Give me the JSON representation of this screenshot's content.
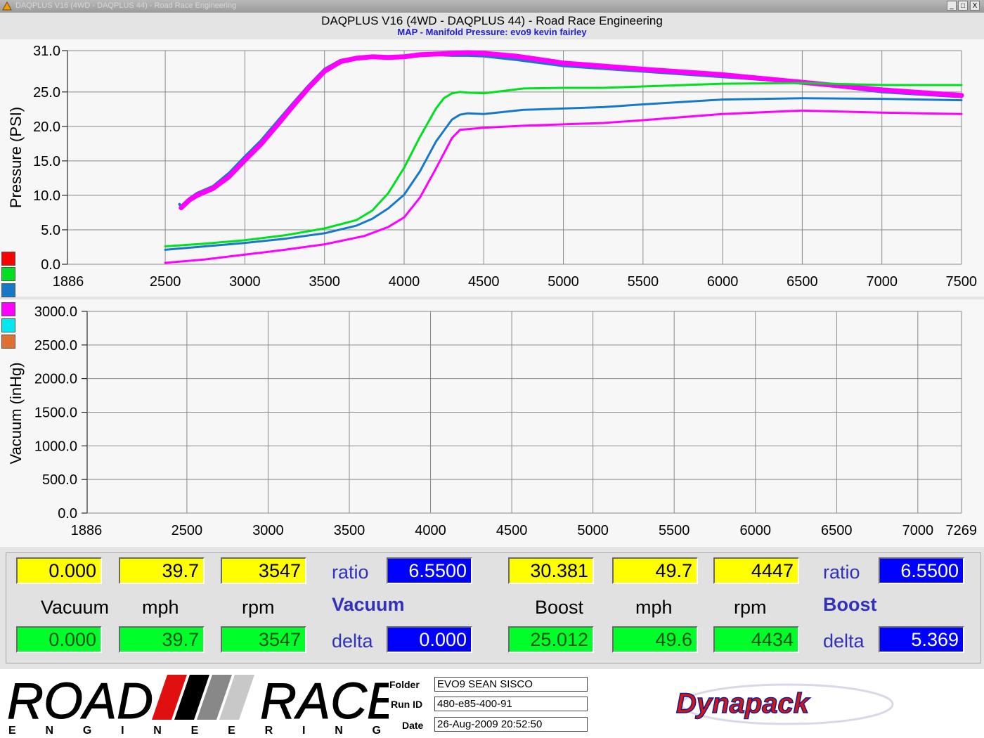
{
  "window": {
    "titlebar_text": "DAQPLUS V16 (4WD - DAQPLUS 44) - Road Race Engineering",
    "app_title": "DAQPLUS V16 (4WD - DAQPLUS 44) - Road Race Engineering",
    "subtitle": "MAP - Manifold Pressure: evo9 kevin fairley",
    "buttons": [
      "_",
      "□",
      "X"
    ]
  },
  "colors": {
    "red": "#ff0000",
    "green": "#00e020",
    "blue": "#1878c8",
    "magenta": "#ff00ff",
    "cyan": "#00e8f0",
    "orange": "#e07030"
  },
  "swatches": [
    "red",
    "green",
    "blue",
    "magenta",
    "cyan",
    "orange"
  ],
  "chart_data": [
    {
      "type": "line",
      "title": "MAP - Manifold Pressure: evo9 kevin fairley",
      "ylabel": "Pressure (PSI)",
      "xlabel": "",
      "x_ticks": [
        "1886",
        "2500",
        "3000",
        "3500",
        "4000",
        "4500",
        "5000",
        "5500",
        "6000",
        "6500",
        "7000",
        "7500"
      ],
      "y_ticks": [
        "0.0",
        "5.0",
        "10.0",
        "15.0",
        "20.0",
        "25.0",
        "31.0"
      ],
      "xlim": [
        1886,
        7500
      ],
      "ylim": [
        0,
        31
      ],
      "grid": true,
      "series": [
        {
          "color": "blue",
          "width": 4,
          "x": [
            2590,
            2600,
            2650,
            2700,
            2800,
            2900,
            3000,
            3100,
            3200,
            3300,
            3400,
            3500,
            3600,
            3700,
            3800,
            3900,
            4000,
            4100,
            4200,
            4300,
            4400,
            4500,
            4700,
            5000,
            5500,
            6000,
            6500,
            7000,
            7500
          ],
          "y": [
            8.7,
            8.4,
            9.5,
            10.3,
            11.3,
            13.2,
            15.6,
            17.9,
            20.6,
            23.3,
            25.9,
            28.3,
            29.6,
            30.0,
            30.2,
            30.0,
            30.2,
            30.5,
            30.4,
            30.3,
            30.3,
            30.2,
            29.7,
            28.8,
            28.0,
            27.2,
            26.4,
            25.0,
            24.3
          ]
        },
        {
          "color": "magenta",
          "width": 7,
          "x": [
            2600,
            2650,
            2700,
            2800,
            2900,
            3000,
            3100,
            3200,
            3300,
            3400,
            3500,
            3600,
            3700,
            3800,
            3900,
            4000,
            4100,
            4200,
            4300,
            4400,
            4500,
            4700,
            5000,
            5500,
            6000,
            6500,
            7000,
            7500
          ],
          "y": [
            8.2,
            9.3,
            10.0,
            11.0,
            12.7,
            15.1,
            17.4,
            20.1,
            22.9,
            25.6,
            28.0,
            29.4,
            29.9,
            30.1,
            30.0,
            30.1,
            30.4,
            30.5,
            30.6,
            30.7,
            30.6,
            30.2,
            29.2,
            28.3,
            27.5,
            26.4,
            25.3,
            24.5
          ]
        },
        {
          "color": "green",
          "width": 3,
          "x": [
            2500,
            2750,
            3000,
            3250,
            3500,
            3700,
            3800,
            3900,
            4000,
            4100,
            4200,
            4250,
            4300,
            4350,
            4400,
            4500,
            4750,
            5000,
            5250,
            5500,
            6000,
            6500,
            7000,
            7500
          ],
          "y": [
            2.6,
            3.0,
            3.5,
            4.2,
            5.2,
            6.4,
            7.8,
            10.3,
            14.0,
            18.5,
            22.6,
            24.1,
            24.8,
            25.0,
            24.9,
            24.8,
            25.5,
            25.6,
            25.6,
            25.8,
            26.2,
            26.3,
            26.0,
            26.0
          ]
        },
        {
          "color": "blue",
          "width": 3,
          "x": [
            2500,
            2750,
            3000,
            3250,
            3500,
            3700,
            3800,
            3900,
            4000,
            4100,
            4200,
            4300,
            4350,
            4400,
            4500,
            4750,
            5000,
            5250,
            5500,
            6000,
            6500,
            7000,
            7500
          ],
          "y": [
            2.1,
            2.6,
            3.1,
            3.7,
            4.5,
            5.6,
            6.6,
            8.1,
            10.1,
            13.5,
            17.8,
            21.0,
            21.7,
            21.9,
            21.8,
            22.4,
            22.6,
            22.8,
            23.2,
            23.9,
            24.1,
            24.0,
            23.8
          ]
        },
        {
          "color": "magenta",
          "width": 3,
          "x": [
            2500,
            2750,
            3000,
            3250,
            3500,
            3750,
            3900,
            4000,
            4100,
            4200,
            4300,
            4350,
            4400,
            4500,
            4750,
            5000,
            5250,
            5500,
            6000,
            6500,
            7000,
            7500
          ],
          "y": [
            0.2,
            0.7,
            1.4,
            2.1,
            2.9,
            4.1,
            5.4,
            6.8,
            9.7,
            13.9,
            18.3,
            19.5,
            19.6,
            19.8,
            20.1,
            20.3,
            20.5,
            20.9,
            21.8,
            22.3,
            22.0,
            21.8
          ]
        }
      ]
    },
    {
      "type": "line",
      "title": "",
      "ylabel": "Vacuum (inHg)",
      "xlabel": "",
      "x_ticks": [
        "1886",
        "2500",
        "3000",
        "3500",
        "4000",
        "4500",
        "5000",
        "5500",
        "6000",
        "6500",
        "7000",
        "7269"
      ],
      "y_ticks": [
        "0.0",
        "500.0",
        "1000.0",
        "1500.0",
        "2000.0",
        "2500.0",
        "3000.0"
      ],
      "xlim": [
        1886,
        7269
      ],
      "ylim": [
        0,
        3000
      ],
      "grid": true,
      "series": []
    }
  ],
  "readouts": {
    "vacuum": {
      "top": [
        "0.000",
        "39.7",
        "3547"
      ],
      "bottom": [
        "0.000",
        "39.7",
        "3547"
      ],
      "labels": [
        "Vacuum",
        "mph",
        "rpm"
      ],
      "ratio_label": "ratio",
      "ratio_value": "6.5500",
      "group_label": "Vacuum",
      "delta_label": "delta",
      "delta_value": "0.000"
    },
    "boost": {
      "top": [
        "30.381",
        "49.7",
        "4447"
      ],
      "bottom": [
        "25.012",
        "49.6",
        "4434"
      ],
      "labels": [
        "Boost",
        "mph",
        "rpm"
      ],
      "ratio_label": "ratio",
      "ratio_value": "6.5500",
      "group_label": "Boost",
      "delta_label": "delta",
      "delta_value": "5.369"
    }
  },
  "footer": {
    "logo_word1": "ROAD",
    "logo_word2": "RACE",
    "logo_sub": "E N G I N E E R I N G",
    "folder_label": "Folder",
    "folder_value": "EVO9 SEAN SISCO",
    "runid_label": "Run ID",
    "runid_value": "480-e85-400-91",
    "date_label": "Date",
    "date_value": "26-Aug-2009  20:52:50",
    "brand": "Dynapack"
  }
}
